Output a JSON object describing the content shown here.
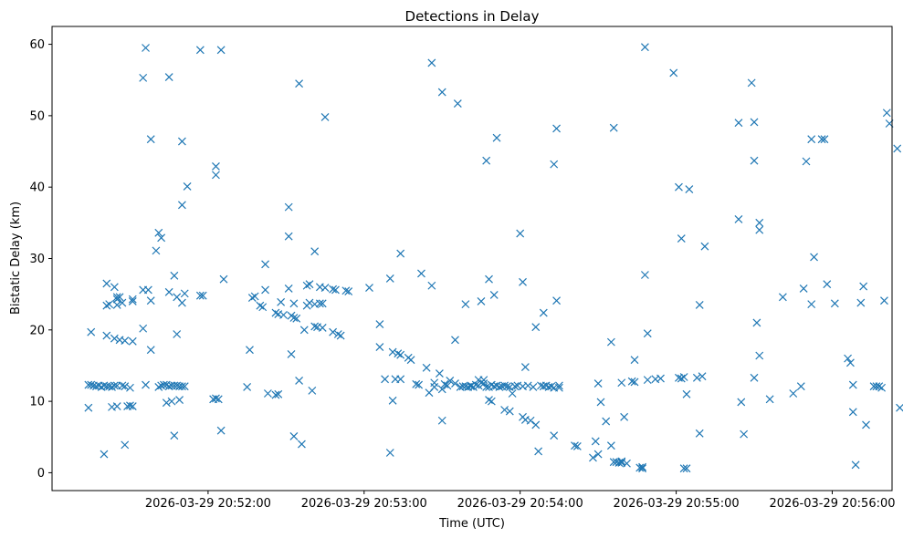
{
  "chart_data": {
    "type": "scatter",
    "title": "Detections in Delay",
    "xlabel": "Time (UTC)",
    "ylabel": "Bistatic Delay (km)",
    "marker": "x",
    "color": "#1f77b4",
    "grid": false,
    "x_unit": "seconds since 2026-03-29 20:51:00",
    "xlim": [
      0,
      323
    ],
    "ylim": [
      -2.5,
      62.5
    ],
    "x_ticks": [
      {
        "value": 60,
        "label": "2026-03-29 20:52:00"
      },
      {
        "value": 120,
        "label": "2026-03-29 20:53:00"
      },
      {
        "value": 180,
        "label": "2026-03-29 20:54:00"
      },
      {
        "value": 240,
        "label": "2026-03-29 20:55:00"
      },
      {
        "value": 300,
        "label": "2026-03-29 20:56:00"
      }
    ],
    "y_ticks": [
      {
        "value": 0,
        "label": "0"
      },
      {
        "value": 10,
        "label": "10"
      },
      {
        "value": 20,
        "label": "20"
      },
      {
        "value": 30,
        "label": "30"
      },
      {
        "value": 40,
        "label": "40"
      },
      {
        "value": 50,
        "label": "50"
      },
      {
        "value": 60,
        "label": "60"
      }
    ],
    "points": [
      [
        14,
        9.1
      ],
      [
        14,
        12.3
      ],
      [
        15,
        19.7
      ],
      [
        15,
        12.3
      ],
      [
        16,
        12.2
      ],
      [
        17,
        12.1
      ],
      [
        18,
        12.2
      ],
      [
        19,
        12
      ],
      [
        20,
        12.2
      ],
      [
        20,
        2.6
      ],
      [
        21,
        26.5
      ],
      [
        21,
        23.4
      ],
      [
        21,
        19.2
      ],
      [
        21,
        12.1
      ],
      [
        22,
        23.6
      ],
      [
        22,
        12.1
      ],
      [
        23,
        12
      ],
      [
        23,
        9.2
      ],
      [
        24,
        12.2
      ],
      [
        24,
        26
      ],
      [
        24,
        18.8
      ],
      [
        25,
        24.3
      ],
      [
        25,
        23.5
      ],
      [
        25,
        24.6
      ],
      [
        25,
        12.2
      ],
      [
        25,
        9.3
      ],
      [
        26,
        24.6
      ],
      [
        26,
        18.6
      ],
      [
        27,
        23.8
      ],
      [
        27,
        12.2
      ],
      [
        28,
        12.1
      ],
      [
        28,
        18.5
      ],
      [
        28,
        3.9
      ],
      [
        29,
        9.3
      ],
      [
        30,
        9.4
      ],
      [
        30,
        11.9
      ],
      [
        31,
        24.3
      ],
      [
        31,
        24
      ],
      [
        31,
        18.4
      ],
      [
        31,
        9.3
      ],
      [
        35,
        20.2
      ],
      [
        35,
        25.6
      ],
      [
        35,
        55.3
      ],
      [
        36,
        59.5
      ],
      [
        36,
        12.3
      ],
      [
        37,
        25.6
      ],
      [
        38,
        24.1
      ],
      [
        38,
        46.7
      ],
      [
        38,
        17.2
      ],
      [
        40,
        31.1
      ],
      [
        41,
        33.6
      ],
      [
        41,
        12
      ],
      [
        42,
        12.2
      ],
      [
        42,
        32.9
      ],
      [
        43,
        12.3
      ],
      [
        44,
        9.8
      ],
      [
        44,
        12.3
      ],
      [
        45,
        12.1
      ],
      [
        45,
        55.4
      ],
      [
        45,
        25.3
      ],
      [
        46,
        12.2
      ],
      [
        46,
        10
      ],
      [
        47,
        27.6
      ],
      [
        47,
        12.2
      ],
      [
        47,
        5.2
      ],
      [
        48,
        12.2
      ],
      [
        48,
        24.6
      ],
      [
        48,
        19.4
      ],
      [
        49,
        12.1
      ],
      [
        49,
        10.2
      ],
      [
        50,
        12.1
      ],
      [
        50,
        46.4
      ],
      [
        50,
        37.5
      ],
      [
        50,
        23.8
      ],
      [
        51,
        25.1
      ],
      [
        51,
        12.1
      ],
      [
        52,
        40.1
      ],
      [
        57,
        24.8
      ],
      [
        57,
        59.2
      ],
      [
        58,
        24.8
      ],
      [
        62,
        10.3
      ],
      [
        63,
        42.9
      ],
      [
        63,
        41.7
      ],
      [
        63,
        10.4
      ],
      [
        64,
        10.3
      ],
      [
        65,
        59.2
      ],
      [
        65,
        5.9
      ],
      [
        66,
        27.1
      ],
      [
        75,
        12
      ],
      [
        76,
        17.2
      ],
      [
        77,
        24.5
      ],
      [
        78,
        24.7
      ],
      [
        80,
        23.4
      ],
      [
        81,
        23.2
      ],
      [
        82,
        29.2
      ],
      [
        82,
        25.6
      ],
      [
        83,
        11.1
      ],
      [
        86,
        22.4
      ],
      [
        86,
        10.9
      ],
      [
        87,
        22.2
      ],
      [
        87,
        11
      ],
      [
        88,
        23.9
      ],
      [
        89,
        22.1
      ],
      [
        91,
        37.2
      ],
      [
        91,
        33.1
      ],
      [
        91,
        25.8
      ],
      [
        92,
        22
      ],
      [
        92,
        16.6
      ],
      [
        93,
        21.7
      ],
      [
        93,
        5.1
      ],
      [
        93,
        23.7
      ],
      [
        94,
        21.6
      ],
      [
        95,
        12.9
      ],
      [
        95,
        54.5
      ],
      [
        96,
        4
      ],
      [
        97,
        20
      ],
      [
        98,
        23.4
      ],
      [
        98,
        26.2
      ],
      [
        99,
        26.4
      ],
      [
        99,
        23.8
      ],
      [
        100,
        11.5
      ],
      [
        101,
        23.6
      ],
      [
        101,
        20.5
      ],
      [
        101,
        31
      ],
      [
        102,
        20.4
      ],
      [
        103,
        23.7
      ],
      [
        103,
        26
      ],
      [
        104,
        20.3
      ],
      [
        104,
        23.7
      ],
      [
        105,
        25.9
      ],
      [
        105,
        49.8
      ],
      [
        108,
        25.7
      ],
      [
        108,
        19.7
      ],
      [
        109,
        25.6
      ],
      [
        110,
        19.4
      ],
      [
        111,
        19.2
      ],
      [
        113,
        25.5
      ],
      [
        114,
        25.4
      ],
      [
        122,
        25.9
      ],
      [
        126,
        20.8
      ],
      [
        126,
        17.6
      ],
      [
        128,
        13.1
      ],
      [
        130,
        27.2
      ],
      [
        130,
        2.8
      ],
      [
        131,
        10.1
      ],
      [
        131,
        16.9
      ],
      [
        132,
        13.1
      ],
      [
        133,
        16.7
      ],
      [
        134,
        30.7
      ],
      [
        134,
        16.5
      ],
      [
        134,
        13.1
      ],
      [
        137,
        16.1
      ],
      [
        138,
        15.8
      ],
      [
        140,
        12.4
      ],
      [
        141,
        12.3
      ],
      [
        142,
        27.9
      ],
      [
        144,
        14.7
      ],
      [
        145,
        11.2
      ],
      [
        146,
        57.4
      ],
      [
        146,
        26.2
      ],
      [
        147,
        12
      ],
      [
        147,
        12.6
      ],
      [
        149,
        13.9
      ],
      [
        150,
        11.7
      ],
      [
        150,
        7.3
      ],
      [
        150,
        53.3
      ],
      [
        151,
        12.4
      ],
      [
        152,
        12.2
      ],
      [
        153,
        12.9
      ],
      [
        155,
        18.6
      ],
      [
        155,
        12.5
      ],
      [
        156,
        51.7
      ],
      [
        157,
        12
      ],
      [
        158,
        12.1
      ],
      [
        159,
        23.6
      ],
      [
        159,
        12.1
      ],
      [
        160,
        12
      ],
      [
        161,
        12.1
      ],
      [
        161,
        12.2
      ],
      [
        162,
        12
      ],
      [
        163,
        12.3
      ],
      [
        164,
        12.2
      ],
      [
        164,
        13
      ],
      [
        165,
        24
      ],
      [
        165,
        12.6
      ],
      [
        166,
        13
      ],
      [
        166,
        12.5
      ],
      [
        167,
        43.7
      ],
      [
        167,
        12
      ],
      [
        168,
        10.2
      ],
      [
        168,
        27.1
      ],
      [
        168,
        12
      ],
      [
        169,
        10
      ],
      [
        169,
        12.3
      ],
      [
        170,
        24.9
      ],
      [
        170,
        12.1
      ],
      [
        171,
        46.9
      ],
      [
        171,
        12.2
      ],
      [
        172,
        12
      ],
      [
        173,
        12.1
      ],
      [
        174,
        8.8
      ],
      [
        174,
        12.2
      ],
      [
        175,
        12.1
      ],
      [
        176,
        8.6
      ],
      [
        176,
        12
      ],
      [
        177,
        11.1
      ],
      [
        178,
        12.1
      ],
      [
        179,
        12.2
      ],
      [
        180,
        33.5
      ],
      [
        181,
        26.7
      ],
      [
        181,
        12.1
      ],
      [
        181,
        7.8
      ],
      [
        182,
        14.8
      ],
      [
        182,
        7.4
      ],
      [
        183,
        12.2
      ],
      [
        184,
        7.3
      ],
      [
        185,
        12
      ],
      [
        186,
        6.7
      ],
      [
        186,
        20.4
      ],
      [
        187,
        3
      ],
      [
        188,
        12.2
      ],
      [
        189,
        22.4
      ],
      [
        189,
        12.1
      ],
      [
        190,
        12.2
      ],
      [
        191,
        12
      ],
      [
        192,
        12.1
      ],
      [
        193,
        43.2
      ],
      [
        193,
        5.2
      ],
      [
        193,
        11.9
      ],
      [
        194,
        48.2
      ],
      [
        194,
        24.1
      ],
      [
        195,
        12.2
      ],
      [
        195,
        11.9
      ],
      [
        201,
        3.8
      ],
      [
        202,
        3.7
      ],
      [
        208,
        2.1
      ],
      [
        209,
        4.4
      ],
      [
        210,
        12.5
      ],
      [
        210,
        2.6
      ],
      [
        211,
        9.9
      ],
      [
        213,
        7.2
      ],
      [
        215,
        18.3
      ],
      [
        215,
        3.8
      ],
      [
        216,
        48.3
      ],
      [
        216,
        1.5
      ],
      [
        217,
        1.5
      ],
      [
        218,
        1.4
      ],
      [
        219,
        1.4
      ],
      [
        219,
        1.6
      ],
      [
        219,
        12.6
      ],
      [
        220,
        7.8
      ],
      [
        221,
        1.3
      ],
      [
        223,
        12.8
      ],
      [
        224,
        15.8
      ],
      [
        224,
        12.7
      ],
      [
        226,
        0.7
      ],
      [
        227,
        0.6
      ],
      [
        227,
        0.8
      ],
      [
        228,
        59.6
      ],
      [
        228,
        27.7
      ],
      [
        229,
        19.5
      ],
      [
        229,
        13
      ],
      [
        232,
        13.1
      ],
      [
        234,
        13.2
      ],
      [
        239,
        56
      ],
      [
        241,
        13.3
      ],
      [
        241,
        40
      ],
      [
        242,
        32.8
      ],
      [
        242,
        13.2
      ],
      [
        243,
        13.4
      ],
      [
        243,
        0.6
      ],
      [
        244,
        0.6
      ],
      [
        244,
        11
      ],
      [
        245,
        39.7
      ],
      [
        248,
        13.3
      ],
      [
        249,
        23.5
      ],
      [
        249,
        5.5
      ],
      [
        250,
        13.5
      ],
      [
        251,
        31.7
      ],
      [
        264,
        35.5
      ],
      [
        264,
        49
      ],
      [
        265,
        9.9
      ],
      [
        266,
        5.4
      ],
      [
        269,
        54.6
      ],
      [
        270,
        49.1
      ],
      [
        270,
        43.7
      ],
      [
        270,
        13.3
      ],
      [
        271,
        21
      ],
      [
        272,
        35
      ],
      [
        272,
        34
      ],
      [
        272,
        16.4
      ],
      [
        276,
        10.3
      ],
      [
        281,
        24.6
      ],
      [
        285,
        11.1
      ],
      [
        288,
        12.1
      ],
      [
        289,
        25.8
      ],
      [
        290,
        43.6
      ],
      [
        292,
        46.7
      ],
      [
        292,
        23.6
      ],
      [
        293,
        30.2
      ],
      [
        296,
        46.7
      ],
      [
        297,
        46.7
      ],
      [
        298,
        26.4
      ],
      [
        301,
        23.7
      ],
      [
        306,
        16
      ],
      [
        307,
        15.4
      ],
      [
        308,
        12.3
      ],
      [
        308,
        8.5
      ],
      [
        309,
        1.1
      ],
      [
        311,
        23.8
      ],
      [
        312,
        26.1
      ],
      [
        313,
        6.7
      ],
      [
        316,
        12.1
      ],
      [
        317,
        12.1
      ],
      [
        318,
        12.1
      ],
      [
        319,
        11.9
      ],
      [
        320,
        24.1
      ],
      [
        321,
        50.4
      ],
      [
        322,
        48.9
      ],
      [
        325,
        45.4
      ],
      [
        326,
        9.1
      ]
    ]
  }
}
